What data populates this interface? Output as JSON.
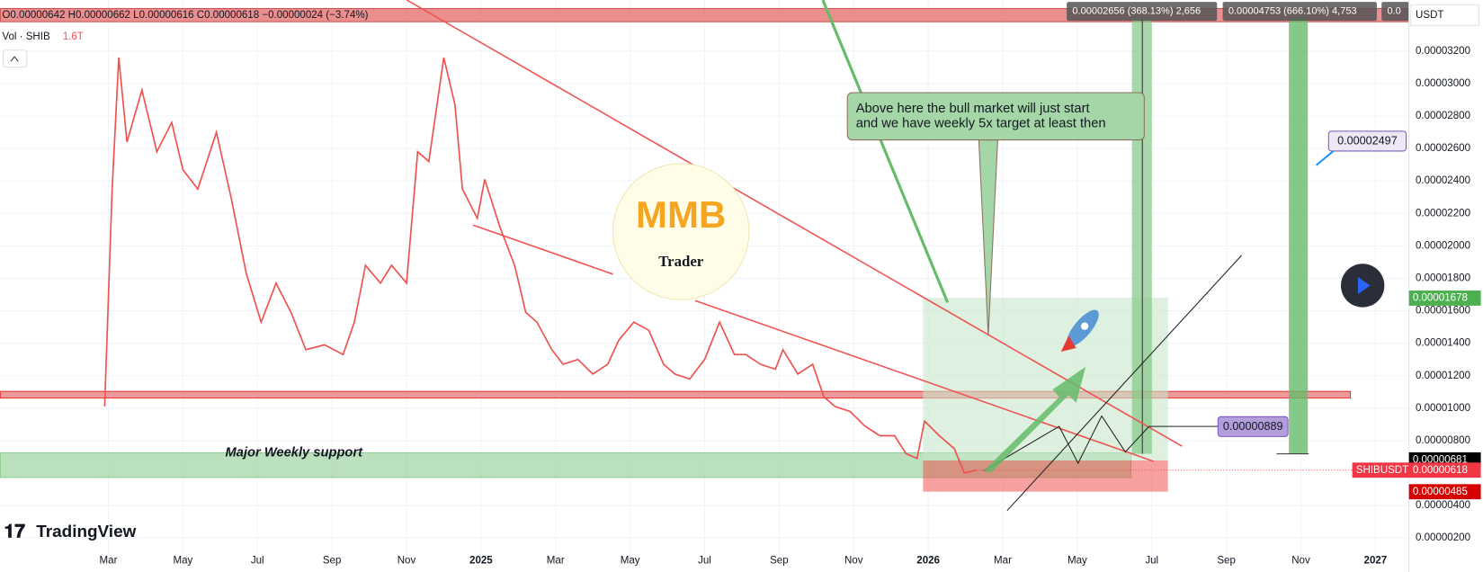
{
  "chart_data": {
    "type": "line",
    "header": "O0.00000642 H0.00000662 L0.00000616 C0.00000618 −0.00000024 (−3.74%)",
    "volume_label": "Vol · SHIB",
    "volume_value": "1.6T",
    "currency": "USDT",
    "x": [
      1.9,
      2.1,
      2.28,
      2.5,
      2.9,
      3.3,
      3.7,
      4.0,
      4.4,
      4.9,
      5.3,
      5.7,
      6.1,
      6.5,
      6.9,
      7.3,
      7.8,
      8.3,
      8.6,
      8.9,
      9.3,
      9.6,
      10.0,
      10.3,
      10.6,
      11.0,
      11.3,
      11.5,
      11.9,
      12.1,
      12.5,
      12.9,
      13.2,
      13.5,
      13.9,
      14.2,
      14.6,
      15.0,
      15.4,
      15.7,
      16.1,
      16.5,
      16.9,
      17.2,
      17.6,
      18.0,
      18.4,
      18.8,
      19.1,
      19.5,
      19.9,
      20.1,
      20.5,
      20.9,
      21.2,
      21.5,
      21.9,
      22.3,
      22.7,
      23.1,
      23.4,
      23.7,
      23.9,
      24.3,
      24.7,
      24.97,
      25.3
    ],
    "series": [
      {
        "name": "SHIBUSDT",
        "color": "#ef5350",
        "values": [
          1.01e-05,
          2.35e-05,
          3.16e-05,
          2.64e-05,
          2.96e-05,
          2.58e-05,
          2.76e-05,
          2.47e-05,
          2.35e-05,
          2.7e-05,
          2.29e-05,
          1.83e-05,
          1.53e-05,
          1.77e-05,
          1.59e-05,
          1.36e-05,
          1.39e-05,
          1.33e-05,
          1.53e-05,
          1.88e-05,
          1.77e-05,
          1.88e-05,
          1.77e-05,
          2.58e-05,
          2.52e-05,
          3.16e-05,
          2.87e-05,
          2.35e-05,
          2.17e-05,
          2.41e-05,
          2.12e-05,
          1.88e-05,
          1.59e-05,
          1.53e-05,
          1.36e-05,
          1.27e-05,
          1.3e-05,
          1.21e-05,
          1.27e-05,
          1.42e-05,
          1.53e-05,
          1.48e-05,
          1.27e-05,
          1.21e-05,
          1.18e-05,
          1.3e-05,
          1.53e-05,
          1.33e-05,
          1.33e-05,
          1.27e-05,
          1.24e-05,
          1.36e-05,
          1.21e-05,
          1.27e-05,
          1.07e-05,
          1.01e-05,
          9.8e-06,
          8.9e-06,
          8.3e-06,
          8.3e-06,
          7.2e-06,
          6.9e-06,
          9.2e-06,
          8.3e-06,
          7.5e-06,
          6e-06,
          6.18e-06
        ]
      }
    ],
    "xlim": [
      -0.9,
      36.9
    ],
    "xticks": [
      {
        "value": 2,
        "label": "Mar"
      },
      {
        "value": 4,
        "label": "May"
      },
      {
        "value": 6,
        "label": "Jul"
      },
      {
        "value": 8,
        "label": "Sep"
      },
      {
        "value": 10,
        "label": "Nov"
      },
      {
        "value": 12,
        "label": "2025"
      },
      {
        "value": 14,
        "label": "Mar"
      },
      {
        "value": 16,
        "label": "May"
      },
      {
        "value": 18,
        "label": "Jul"
      },
      {
        "value": 20,
        "label": "Sep"
      },
      {
        "value": 22,
        "label": "Nov"
      },
      {
        "value": 24,
        "label": "2026"
      },
      {
        "value": 26,
        "label": "Mar"
      },
      {
        "value": 28,
        "label": "May"
      },
      {
        "value": 30,
        "label": "Jul"
      },
      {
        "value": 32,
        "label": "Sep"
      },
      {
        "value": 34,
        "label": "Nov"
      },
      {
        "value": 36,
        "label": "2027"
      }
    ],
    "ylim": [
      4.85e-07,
      3.515e-05
    ],
    "yticks": [
      {
        "value": 2e-06,
        "label": "0.00000200"
      },
      {
        "value": 4e-06,
        "label": "0.00000400"
      },
      {
        "value": 8e-06,
        "label": "0.00000800"
      },
      {
        "value": 1e-05,
        "label": "0.00001000"
      },
      {
        "value": 1.2e-05,
        "label": "0.00001200"
      },
      {
        "value": 1.4e-05,
        "label": "0.00001400"
      },
      {
        "value": 1.6e-05,
        "label": "0.00001600"
      },
      {
        "value": 1.8e-05,
        "label": "0.00001800"
      },
      {
        "value": 2e-05,
        "label": "0.00002000"
      },
      {
        "value": 2.2e-05,
        "label": "0.00002200"
      },
      {
        "value": 2.4e-05,
        "label": "0.00002400"
      },
      {
        "value": 2.6e-05,
        "label": "0.00002600"
      },
      {
        "value": 2.8e-05,
        "label": "0.00002800"
      },
      {
        "value": 3e-05,
        "label": "0.00003000"
      },
      {
        "value": 3.2e-05,
        "label": "0.00003200"
      }
    ],
    "grid": true,
    "price_labels": [
      {
        "value": 1.678e-05,
        "label": "0.00001678",
        "color": "#4caf50"
      },
      {
        "value": 6.81e-06,
        "label": "0.00000681",
        "color": "#000000"
      },
      {
        "value": 6.18e-06,
        "label": "0.00000618",
        "color": "#f23645"
      },
      {
        "value": 4.85e-06,
        "label": "0.00000485",
        "color": "#d50000"
      }
    ],
    "callouts": [
      {
        "value": 2.497e-05,
        "label": "0.00002497"
      },
      {
        "value": 8.89e-06,
        "label": "0.00000889"
      }
    ],
    "measurements": [
      "0.00002656 (368.13%) 2,656",
      "0.00004753 (666.10%) 4,753",
      "0.0"
    ],
    "annotation": [
      "Above here the bull market will just start",
      "and we have weekly 5x target at least then"
    ],
    "support_label": "Major Weekly support",
    "watermark": {
      "top": "MMB",
      "bottom": "Trader"
    },
    "logo": "TradingView"
  }
}
